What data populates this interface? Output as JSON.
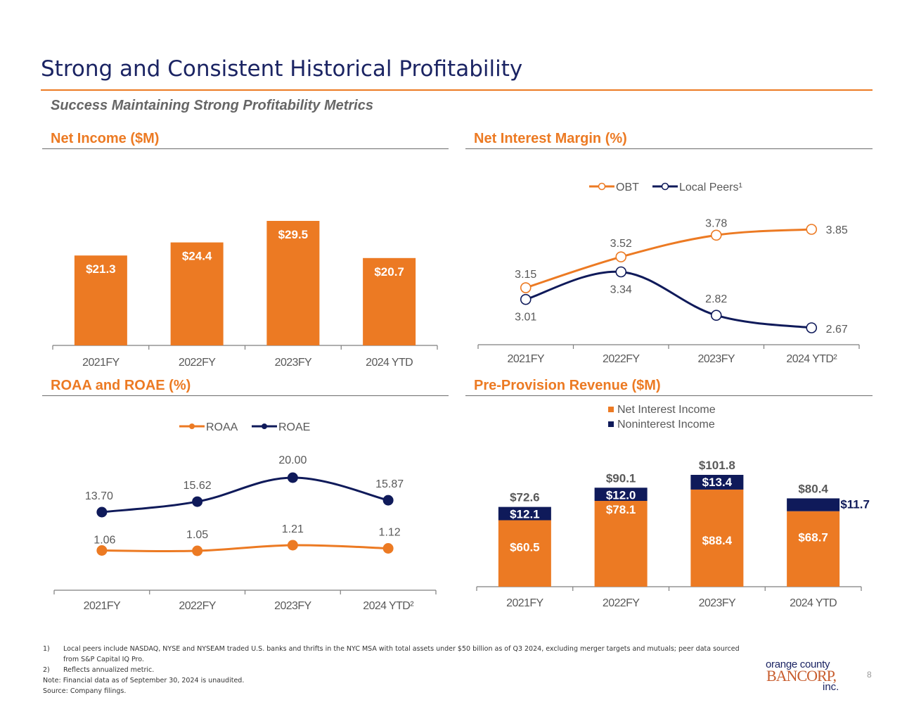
{
  "header": {
    "title": "Strong and Consistent Historical Profitability",
    "subtitle": "Success Maintaining Strong Profitability Metrics"
  },
  "colors": {
    "orange": "#ec7a23",
    "navy": "#0f1a5a",
    "title_navy": "#1b2463",
    "label_gray": "#595959",
    "axis_gray": "#7f7f7f"
  },
  "chart_data": [
    {
      "id": "net_income",
      "type": "bar",
      "title": "Net Income ($M)",
      "categories": [
        "2021FY",
        "2022FY",
        "2023FY",
        "2024 YTD"
      ],
      "values": [
        21.3,
        24.4,
        29.5,
        20.7
      ],
      "data_labels": [
        "$21.3",
        "$24.4",
        "$29.5",
        "$20.7"
      ],
      "xlabel": "",
      "ylabel": "",
      "ylim": [
        0,
        36
      ],
      "grid": false,
      "series_color": "#ec7a23"
    },
    {
      "id": "nim",
      "type": "line",
      "title": "Net Interest Margin (%)",
      "categories": [
        "2021FY",
        "2022FY",
        "2023FY",
        "2024 YTD²"
      ],
      "series": [
        {
          "name": "OBT",
          "values": [
            3.15,
            3.52,
            3.78,
            3.85
          ],
          "labels": [
            "3.15",
            "3.52",
            "3.78",
            "3.85"
          ],
          "color": "#ec7a23",
          "marker": "open-circle"
        },
        {
          "name": "Local Peers¹",
          "values": [
            3.01,
            3.34,
            2.82,
            2.67
          ],
          "labels": [
            "3.01",
            "3.34",
            "2.82",
            "2.67"
          ],
          "color": "#0f1a5a",
          "marker": "open-circle"
        }
      ],
      "ylim": [
        2.4,
        4.3
      ],
      "legend": "top-center",
      "grid": false
    },
    {
      "id": "roaa_roae",
      "type": "line",
      "title": "ROAA and ROAE (%)",
      "categories": [
        "2021FY",
        "2022FY",
        "2023FY",
        "2024 YTD²"
      ],
      "series": [
        {
          "name": "ROAA",
          "values": [
            1.06,
            1.05,
            1.21,
            1.12
          ],
          "labels": [
            "1.06",
            "1.05",
            "1.21",
            "1.12"
          ],
          "color": "#ec7a23",
          "marker": "filled-circle"
        },
        {
          "name": "ROAE",
          "values": [
            13.7,
            15.62,
            20.0,
            15.87
          ],
          "labels": [
            "13.70",
            "15.62",
            "20.00",
            "15.87"
          ],
          "color": "#0f1a5a",
          "marker": "filled-circle"
        }
      ],
      "legend": "top-center",
      "grid": false
    },
    {
      "id": "pre_provision_revenue",
      "type": "bar",
      "stacked": true,
      "title": "Pre-Provision Revenue ($M)",
      "categories": [
        "2021FY",
        "2022FY",
        "2023FY",
        "2024 YTD"
      ],
      "series": [
        {
          "name": "Net Interest Income",
          "values": [
            60.5,
            78.1,
            88.4,
            68.7
          ],
          "labels": [
            "$60.5",
            "$78.1",
            "$88.4",
            "$68.7"
          ],
          "color": "#ec7a23"
        },
        {
          "name": "Noninterest Income",
          "values": [
            12.1,
            12.0,
            13.4,
            11.7
          ],
          "labels": [
            "$12.1",
            "$12.0",
            "$13.4",
            "$11.7"
          ],
          "color": "#0f1a5a"
        }
      ],
      "totals": [
        72.6,
        90.1,
        101.8,
        80.4
      ],
      "total_labels": [
        "$72.6",
        "$90.1",
        "$101.8",
        "$80.4"
      ],
      "ylim": [
        0,
        120
      ],
      "legend": "top-center",
      "grid": false
    }
  ],
  "footnotes": [
    {
      "num": "1)",
      "text": "Local peers include NASDAQ, NYSE and NYSEAM traded U.S. banks and thrifts in the NYC MSA with total assets under $50 billion as of Q3 2024, excluding merger targets and mutuals; peer data sourced from S&P Capital IQ Pro."
    },
    {
      "num": "2)",
      "text": "Reflects annualized metric."
    }
  ],
  "notes": [
    "Note: Financial data as of September 30, 2024 is unaudited.",
    "Source: Company filings."
  ],
  "logo": {
    "line1": "orange county",
    "line2": "BANCORP,",
    "line3": "inc."
  },
  "page_number": "8"
}
